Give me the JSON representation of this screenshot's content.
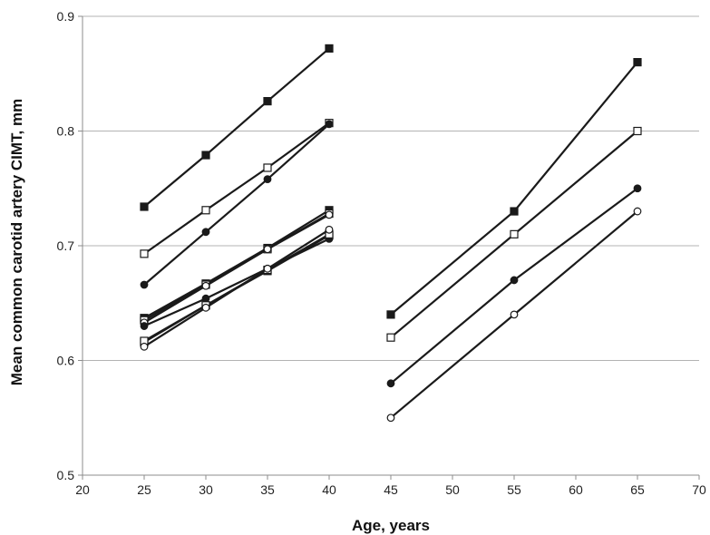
{
  "chart_data": {
    "type": "line",
    "title": "",
    "xlabel": "Age, years",
    "ylabel": "Mean common carotid artery CIMT, mm",
    "xlim": [
      20,
      70
    ],
    "ylim": [
      0.5,
      0.9
    ],
    "x_ticks": [
      "20",
      "25",
      "30",
      "35",
      "40",
      "45",
      "50",
      "55",
      "60",
      "65",
      "70"
    ],
    "y_ticks": [
      "0.5",
      "0.6",
      "0.7",
      "0.8",
      "0.9"
    ],
    "grid": "horizontal",
    "legend": "none",
    "colors": {
      "line": "#1a1a1a",
      "filled_marker": "#1a1a1a",
      "open_marker": "#ffffff",
      "grid": "#b3b3b3"
    },
    "series": [
      {
        "marker": "filled-square",
        "x": [
          25,
          30,
          35,
          40
        ],
        "y": [
          0.734,
          0.779,
          0.826,
          0.872
        ]
      },
      {
        "marker": "open-square",
        "x": [
          25,
          30,
          35,
          40
        ],
        "y": [
          0.693,
          0.731,
          0.768,
          0.807
        ]
      },
      {
        "marker": "filled-circle",
        "x": [
          25,
          30,
          35,
          40
        ],
        "y": [
          0.666,
          0.712,
          0.758,
          0.806
        ]
      },
      {
        "marker": "filled-square",
        "x": [
          25,
          30,
          35,
          40
        ],
        "y": [
          0.637,
          0.667,
          0.698,
          0.731
        ]
      },
      {
        "marker": "open-square",
        "x": [
          25,
          30,
          35,
          40
        ],
        "y": [
          0.635,
          0.666,
          0.697,
          0.728
        ]
      },
      {
        "marker": "open-circle",
        "x": [
          25,
          30,
          35,
          40
        ],
        "y": [
          0.633,
          0.665,
          0.697,
          0.727
        ]
      },
      {
        "marker": "filled-circle",
        "x": [
          25,
          30,
          35,
          40
        ],
        "y": [
          0.63,
          0.654,
          0.68,
          0.706
        ]
      },
      {
        "marker": "filled-square",
        "x": [
          25,
          30,
          35,
          40
        ],
        "y": [
          0.616,
          0.648,
          0.678,
          0.709
        ]
      },
      {
        "marker": "open-square",
        "x": [
          25,
          30,
          35,
          40
        ],
        "y": [
          0.617,
          0.648,
          0.679,
          0.71
        ]
      },
      {
        "marker": "open-circle",
        "x": [
          25,
          30,
          35,
          40
        ],
        "y": [
          0.612,
          0.646,
          0.68,
          0.714
        ]
      },
      {
        "marker": "filled-square",
        "x": [
          45,
          55,
          65
        ],
        "y": [
          0.64,
          0.73,
          0.86
        ]
      },
      {
        "marker": "open-square",
        "x": [
          45,
          55,
          65
        ],
        "y": [
          0.62,
          0.71,
          0.8
        ]
      },
      {
        "marker": "filled-circle",
        "x": [
          45,
          55,
          65
        ],
        "y": [
          0.58,
          0.67,
          0.75
        ]
      },
      {
        "marker": "open-circle",
        "x": [
          45,
          55,
          65
        ],
        "y": [
          0.55,
          0.64,
          0.73
        ]
      }
    ]
  }
}
